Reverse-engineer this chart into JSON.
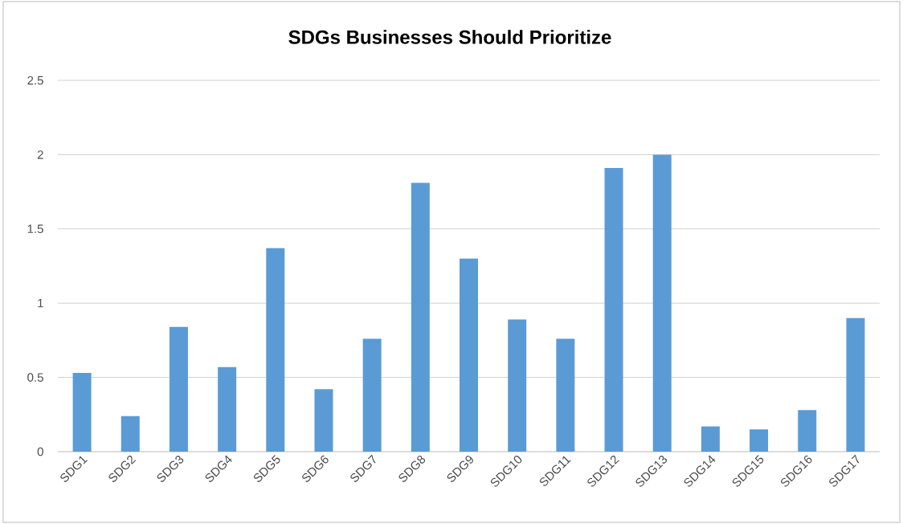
{
  "chart_data": {
    "type": "bar",
    "title": "SDGs Businesses Should Prioritize",
    "categories": [
      "SDG1",
      "SDG2",
      "SDG3",
      "SDG4",
      "SDG5",
      "SDG6",
      "SDG7",
      "SDG8",
      "SDG9",
      "SDG10",
      "SDG11",
      "SDG12",
      "SDG13",
      "SDG14",
      "SDG15",
      "SDG16",
      "SDG17"
    ],
    "values": [
      0.53,
      0.24,
      0.84,
      0.57,
      1.37,
      0.42,
      0.76,
      1.81,
      1.3,
      0.89,
      0.76,
      1.91,
      2.0,
      0.17,
      0.15,
      0.28,
      0.9
    ],
    "color": "#5b9bd5",
    "ylim": [
      0,
      2.5
    ],
    "yticks": [
      0,
      0.5,
      1,
      1.5,
      2,
      2.5
    ],
    "grid": "y"
  }
}
